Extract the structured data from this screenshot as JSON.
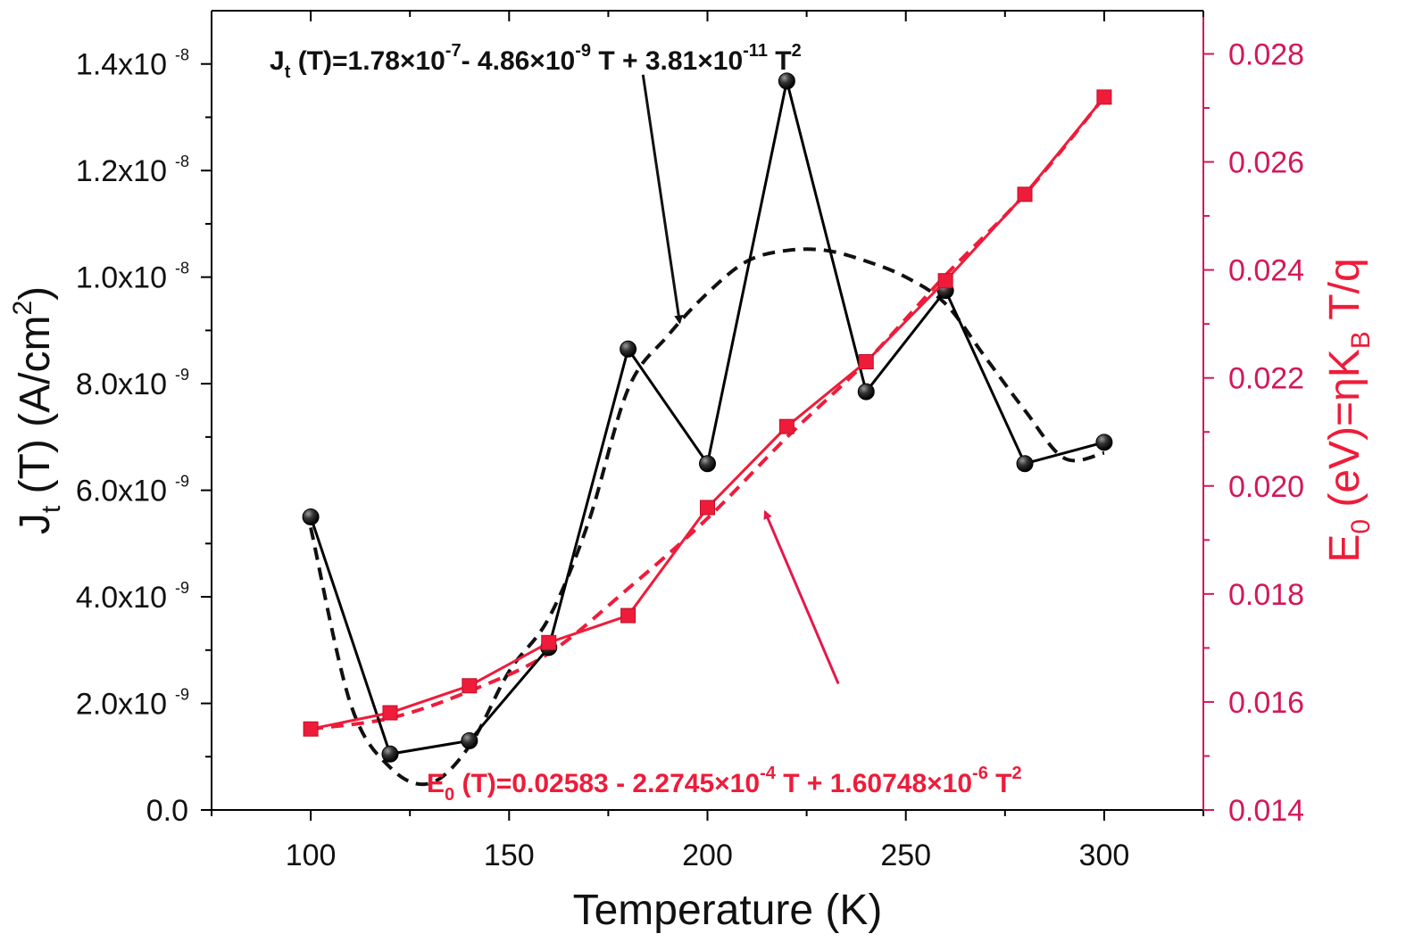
{
  "chart_data": {
    "type": "line",
    "xlabel": "Temperature (K)",
    "ylabel_left": "J_t (T) (A/cm^2)",
    "ylabel_right": "E_0 (eV)=ηK_B T/q",
    "xlim": [
      75,
      325
    ],
    "ylim_left": [
      0,
      1.5e-08
    ],
    "ylim_right": [
      0.014,
      0.0288
    ],
    "x_ticks": [
      100,
      150,
      200,
      250,
      300
    ],
    "y_left_ticks": [
      {
        "value": 0,
        "mant": "0.0",
        "exp": ""
      },
      {
        "value": 2e-09,
        "mant": "2.0x10",
        "exp": "-9"
      },
      {
        "value": 4e-09,
        "mant": "4.0x10",
        "exp": "-9"
      },
      {
        "value": 6e-09,
        "mant": "6.0x10",
        "exp": "-9"
      },
      {
        "value": 8e-09,
        "mant": "8.0x10",
        "exp": "-9"
      },
      {
        "value": 1e-08,
        "mant": "1.0x10",
        "exp": "-8"
      },
      {
        "value": 1.2e-08,
        "mant": "1.2x10",
        "exp": "-8"
      },
      {
        "value": 1.4e-08,
        "mant": "1.4x10",
        "exp": "-8"
      }
    ],
    "y_right_ticks": [
      "0.014",
      "0.016",
      "0.018",
      "0.020",
      "0.022",
      "0.024",
      "0.026",
      "0.028"
    ],
    "series": [
      {
        "axis": "left",
        "marker": "circle",
        "color": "#000000",
        "x": [
          100,
          120,
          140,
          160,
          180,
          200,
          220,
          240,
          260,
          280,
          300
        ],
        "y": [
          5.5e-09,
          1.05e-09,
          1.3e-09,
          3.05e-09,
          8.65e-09,
          6.5e-09,
          1.368e-08,
          7.85e-09,
          9.75e-09,
          6.5e-09,
          6.9e-09
        ]
      },
      {
        "axis": "right",
        "marker": "square",
        "color": "#ee1c3a",
        "x": [
          100,
          120,
          140,
          160,
          180,
          200,
          220,
          240,
          260,
          280,
          300
        ],
        "y": [
          0.0155,
          0.0158,
          0.0163,
          0.0171,
          0.0176,
          0.0196,
          0.0211,
          0.0223,
          0.0238,
          0.0254,
          0.0272
        ]
      }
    ],
    "fit_left": {
      "x": [
        100,
        110,
        120,
        130,
        140,
        150,
        160,
        170,
        180,
        190,
        200,
        210,
        220,
        230,
        240,
        250,
        260,
        270,
        280,
        290,
        300
      ],
      "y": [
        5.3e-09,
        2e-09,
        8e-10,
        5e-10,
        1.2e-09,
        2.6e-09,
        3.6e-09,
        5.4e-09,
        7.9e-09,
        8.9e-09,
        9.7e-09,
        1.03e-08,
        1.05e-08,
        1.05e-08,
        1.03e-08,
        1e-08,
        9.5e-09,
        8.5e-09,
        7.5e-09,
        6.6e-09,
        6.7e-09
      ]
    },
    "fit_right": {
      "x": [
        100,
        120,
        140,
        160,
        180,
        200,
        220,
        240,
        260,
        280,
        300
      ],
      "y": [
        0.0155,
        0.0157,
        0.0162,
        0.0169,
        0.0181,
        0.0194,
        0.0209,
        0.0223,
        0.0239,
        0.0254,
        0.0272
      ]
    },
    "annotations": {
      "left_eq": {
        "lead": "J",
        "lead_sub": "t",
        "part1": " (T)=1.78×10",
        "sup1": "-7",
        "part2": "- 4.86×10",
        "sup2": "-9",
        "part3": " T + 3.81×10",
        "sup3": "-11",
        "part4": " T",
        "sup4": "2"
      },
      "right_eq": {
        "lead": "E",
        "lead_sub": "0",
        "part1": " (T)=0.02583 - 2.2745×10",
        "sup1": "-4",
        "part2": " T + 1.60748×10",
        "sup2": "-6",
        "part3": " T",
        "sup3": "2"
      },
      "left_arrow": {
        "from": [
          195,
          1.4e-08
        ],
        "to": [
          193,
          9.4e-09
        ]
      },
      "right_arrow": {
        "from": [
          233,
          1.95e-09
        ],
        "to": [
          210,
          5.85e-09
        ]
      }
    },
    "ylabel_left_parts": {
      "a": "J",
      "a_sub": "t",
      "b": " (T) (A/cm",
      "b_sup": "2",
      "c": ")"
    },
    "ylabel_right_parts": {
      "a": "E",
      "a_sub": "0",
      "b": " (eV)=ηK",
      "b_sub": "B",
      "c": " T/q"
    }
  }
}
